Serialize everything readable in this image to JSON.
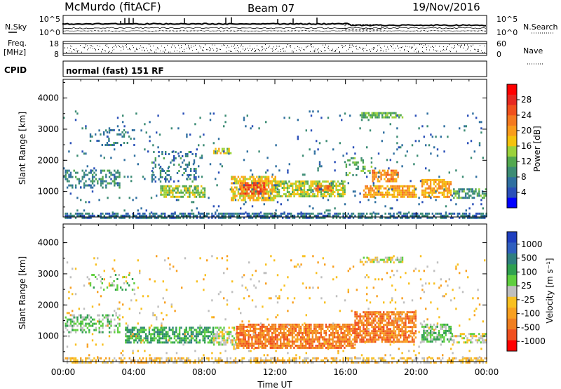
{
  "header": {
    "station": "McMurdo (fitACF)",
    "beam": "Beam 07",
    "date": "19/Nov/2016"
  },
  "strip_labels": {
    "nsky": "N.Sky",
    "nsearch": "N.Search",
    "freq_line1": "Freq.",
    "freq_line2": "[MHz]",
    "nave": "Nave",
    "cpid": "CPID",
    "mode": "normal (fast) 151 RF"
  },
  "strip_ticks": {
    "noise_left": [
      "10^5",
      "10^0"
    ],
    "noise_right": [
      "10^5",
      "10^0"
    ],
    "freq_left": [
      "18",
      "8"
    ],
    "nave_right": [
      "60",
      "0"
    ]
  },
  "colors": {
    "power_scale": [
      "#0000ff",
      "#2a4fb8",
      "#2f6fa0",
      "#3c8c74",
      "#52a84f",
      "#9bd23b",
      "#f4c20d",
      "#f99c1c",
      "#f47a20",
      "#f0501c",
      "#e62820",
      "#ff0000"
    ],
    "velocity_scale": [
      "#1f3fbf",
      "#2f5fbf",
      "#2f7f7f",
      "#2fa04f",
      "#5fcf3f",
      "#bfbfbf",
      "#f8c020",
      "#f8a020",
      "#f07f20",
      "#f04f1f",
      "#ff0000"
    ]
  },
  "chart_data": [
    {
      "type": "heatmap",
      "name": "power",
      "ylabel": "Slant Range [km]",
      "yticks": [
        1000,
        2000,
        3000,
        4000
      ],
      "ylim": [
        180,
        4600
      ],
      "xlim": [
        0,
        24
      ],
      "colorbar": {
        "label": "Power [dB]",
        "ticks": [
          4,
          8,
          12,
          16,
          20,
          24,
          28
        ],
        "range": [
          0,
          32
        ]
      },
      "regions": [
        {
          "t0": 0.0,
          "t1": 24.0,
          "r0": 180,
          "r1": 320,
          "v": 6,
          "d": 0.65
        },
        {
          "t0": 0.1,
          "t1": 3.2,
          "r0": 1100,
          "r1": 1700,
          "v": 8,
          "d": 0.45
        },
        {
          "t0": 1.5,
          "t1": 4.0,
          "r0": 2500,
          "r1": 3000,
          "v": 7,
          "d": 0.22
        },
        {
          "t0": 5.0,
          "t1": 7.5,
          "r0": 1300,
          "r1": 2300,
          "v": 7,
          "d": 0.25
        },
        {
          "t0": 5.5,
          "t1": 8.0,
          "r0": 800,
          "r1": 1200,
          "v": 14,
          "d": 0.7
        },
        {
          "t0": 8.5,
          "t1": 9.5,
          "r0": 2200,
          "r1": 2400,
          "v": 16,
          "d": 0.6
        },
        {
          "t0": 9.5,
          "t1": 12.0,
          "r0": 750,
          "r1": 1500,
          "v": 18,
          "d": 0.8
        },
        {
          "t0": 10.0,
          "t1": 11.5,
          "r0": 900,
          "r1": 1300,
          "v": 27,
          "d": 0.7
        },
        {
          "t0": 12.0,
          "t1": 16.0,
          "r0": 850,
          "r1": 1350,
          "v": 15,
          "d": 0.75
        },
        {
          "t0": 14.2,
          "t1": 15.2,
          "r0": 1000,
          "r1": 1200,
          "v": 24,
          "d": 0.7
        },
        {
          "t0": 16.0,
          "t1": 17.5,
          "r0": 1500,
          "r1": 2100,
          "v": 11,
          "d": 0.35
        },
        {
          "t0": 16.8,
          "t1": 19.2,
          "r0": 3350,
          "r1": 3550,
          "v": 12,
          "d": 0.7
        },
        {
          "t0": 17.5,
          "t1": 19.0,
          "r0": 1300,
          "r1": 1700,
          "v": 22,
          "d": 0.7
        },
        {
          "t0": 17.0,
          "t1": 20.0,
          "r0": 850,
          "r1": 1200,
          "v": 20,
          "d": 0.75
        },
        {
          "t0": 20.3,
          "t1": 22.0,
          "r0": 800,
          "r1": 1400,
          "v": 20,
          "d": 0.7
        },
        {
          "t0": 22.0,
          "t1": 24.0,
          "r0": 800,
          "r1": 1100,
          "v": 10,
          "d": 0.5
        },
        {
          "t0": 0.0,
          "t1": 24.0,
          "r0": 300,
          "r1": 3600,
          "v": 6,
          "d": 0.035
        }
      ]
    },
    {
      "type": "heatmap",
      "name": "velocity",
      "ylabel": "Slant Range [km]",
      "xlabel": "Time UT",
      "xticks": [
        "00:00",
        "04:00",
        "08:00",
        "12:00",
        "16:00",
        "20:00",
        "00:00"
      ],
      "yticks": [
        1000,
        2000,
        3000,
        4000
      ],
      "ylim": [
        180,
        4600
      ],
      "xlim": [
        0,
        24
      ],
      "colorbar": {
        "label": "Velocity [m s⁻¹]",
        "ticks": [
          "1000",
          "500",
          "100",
          "25",
          "-25",
          "-100",
          "-500",
          "-1000"
        ]
      },
      "regions": [
        {
          "t0": 0.0,
          "t1": 24.0,
          "r0": 180,
          "r1": 320,
          "v": 6,
          "d": 0.55
        },
        {
          "t0": 0.1,
          "t1": 3.2,
          "r0": 1100,
          "r1": 1700,
          "v": 4,
          "d": 0.5
        },
        {
          "t0": 1.5,
          "t1": 4.0,
          "r0": 2500,
          "r1": 3000,
          "v": 4,
          "d": 0.2
        },
        {
          "t0": 3.5,
          "t1": 8.5,
          "r0": 800,
          "r1": 1300,
          "v": 3,
          "d": 0.7
        },
        {
          "t0": 8.5,
          "t1": 9.8,
          "r0": 700,
          "r1": 1300,
          "v": 5,
          "d": 0.6
        },
        {
          "t0": 9.8,
          "t1": 16.5,
          "r0": 650,
          "r1": 1400,
          "v": 8,
          "d": 0.8
        },
        {
          "t0": 16.5,
          "t1": 20.0,
          "r0": 850,
          "r1": 1800,
          "v": 8,
          "d": 0.75
        },
        {
          "t0": 16.8,
          "t1": 19.2,
          "r0": 3350,
          "r1": 3550,
          "v": 5,
          "d": 0.5
        },
        {
          "t0": 20.3,
          "t1": 22.0,
          "r0": 800,
          "r1": 1400,
          "v": 4,
          "d": 0.7
        },
        {
          "t0": 22.0,
          "t1": 24.0,
          "r0": 800,
          "r1": 1100,
          "v": 5,
          "d": 0.45
        },
        {
          "t0": 0.0,
          "t1": 24.0,
          "r0": 300,
          "r1": 3600,
          "v": 6,
          "d": 0.035
        }
      ]
    }
  ]
}
